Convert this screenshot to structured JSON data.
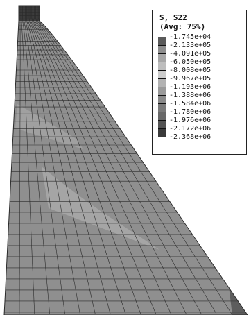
{
  "contour": {
    "variable": "S, S22",
    "averaging": "(Avg: 75%)",
    "levels": [
      "-1.745e+04",
      "-2.133e+05",
      "-4.091e+05",
      "-6.050e+05",
      "-8.008e+05",
      "-9.967e+05",
      "-1.193e+06",
      "-1.388e+06",
      "-1.584e+06",
      "-1.780e+06",
      "-1.976e+06",
      "-2.172e+06",
      "-2.368e+06"
    ],
    "band_colors": [
      "#5a5a5a",
      "#8e8e8e",
      "#a6a6a6",
      "#bdbdbd",
      "#cccccc",
      "#b3b3b3",
      "#9a9a9a",
      "#8a8a8a",
      "#7a7a7a",
      "#686868",
      "#535353",
      "#3a3a3a"
    ]
  },
  "mesh": {
    "fill_color": "#8f8f8f",
    "light_fill_color": "#b8b8b8",
    "dark_fill_color": "#3c3c3c",
    "line_color": "#2a2a2a"
  }
}
